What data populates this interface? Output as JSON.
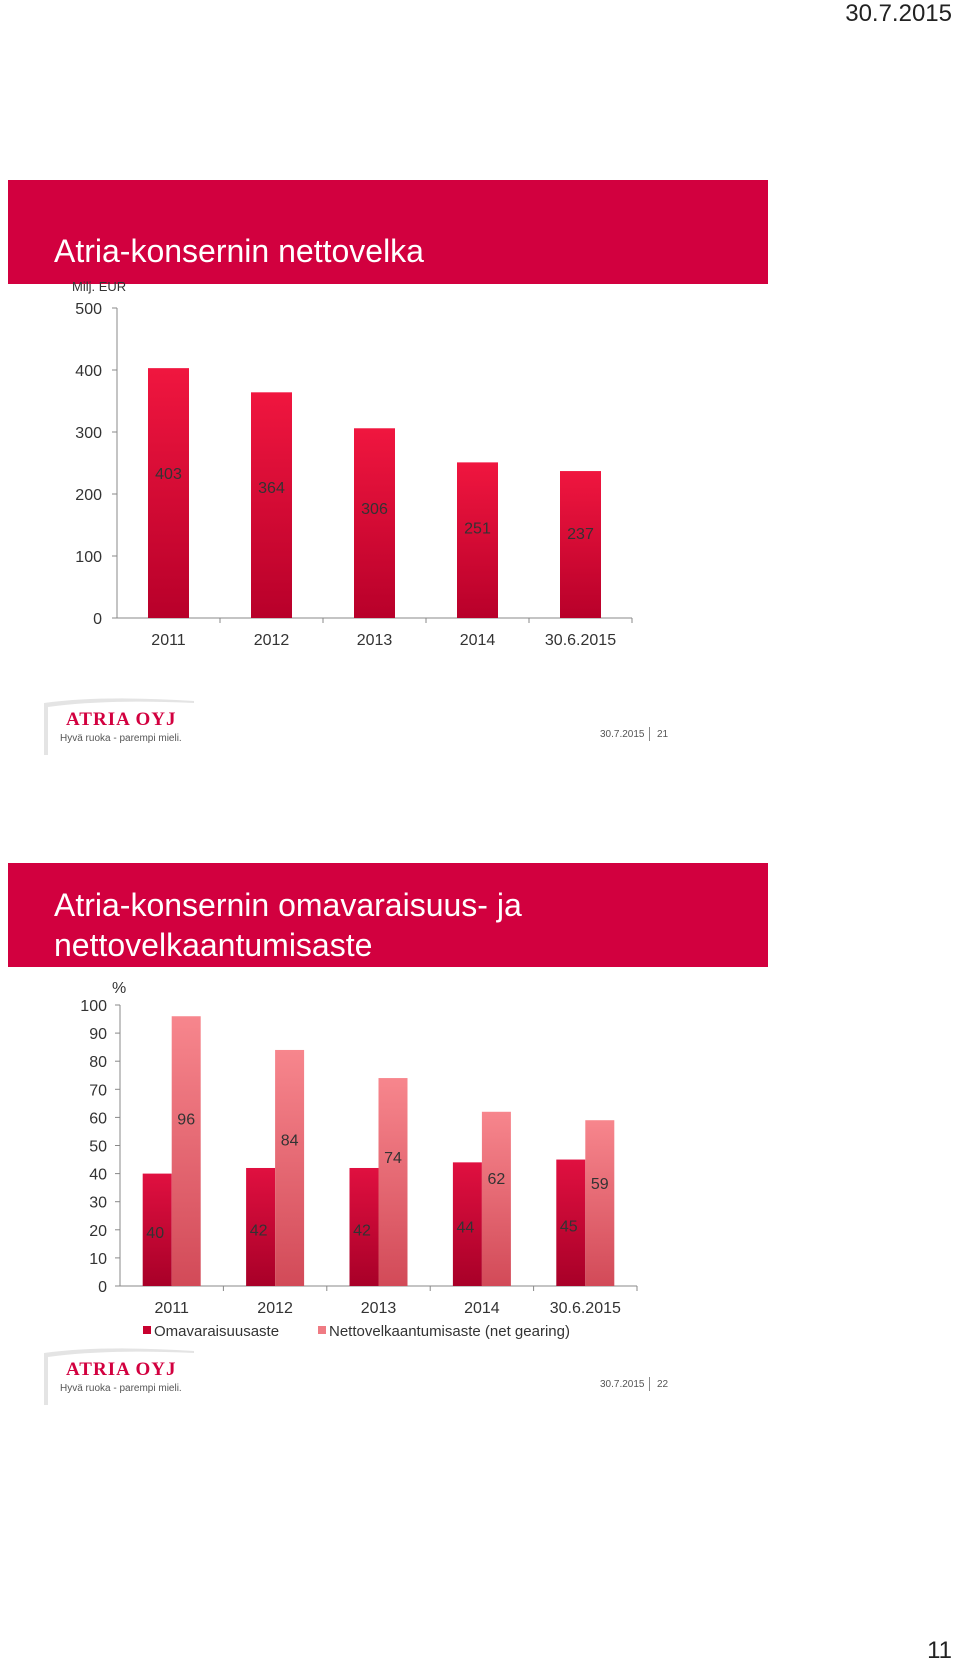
{
  "page": {
    "date": "30.7.2015",
    "number": "11"
  },
  "slides": [
    {
      "title": "Atria-konsernin nettovelka",
      "unit": "Milj. EUR",
      "footer_date": "30.7.2015",
      "slide_number": "21",
      "logo_name": "ATRIA OYJ",
      "logo_slogan": "Hyvä ruoka - parempi mieli."
    },
    {
      "title": "Atria-konsernin omavaraisuus- ja nettovelkaantumisaste",
      "unit": "%",
      "footer_date": "30.7.2015",
      "slide_number": "22",
      "logo_name": "ATRIA OYJ",
      "logo_slogan": "Hyvä ruoka - parempi mieli."
    }
  ],
  "chart_data": [
    {
      "type": "bar",
      "title": "Atria-konsernin nettovelka",
      "ylabel": "Milj. EUR",
      "xlabel": "",
      "categories": [
        "2011",
        "2012",
        "2013",
        "2014",
        "30.6.2015"
      ],
      "values": [
        403,
        364,
        306,
        251,
        237
      ],
      "value_labels": [
        "403",
        "364",
        "306",
        "251",
        "237"
      ],
      "ylim": [
        0,
        500
      ],
      "yticks": [
        "0",
        "100",
        "200",
        "300",
        "400",
        "500"
      ],
      "color": "#e3103f",
      "grid": false
    },
    {
      "type": "bar",
      "title": "Atria-konsernin omavaraisuus- ja nettovelkaantumisaste",
      "ylabel": "%",
      "xlabel": "",
      "categories": [
        "2011",
        "2012",
        "2013",
        "2014",
        "30.6.2015"
      ],
      "series": [
        {
          "name": "Omavaraisuusaste",
          "values": [
            40,
            42,
            42,
            44,
            45
          ],
          "value_labels": [
            "40",
            "42",
            "42",
            "44",
            "45"
          ],
          "color": "#d8103a"
        },
        {
          "name": "Nettovelkaantumisaste (net gearing)",
          "values": [
            96,
            84,
            74,
            62,
            59
          ],
          "value_labels": [
            "96",
            "84",
            "74",
            "62",
            "59"
          ],
          "color": "#ef7b83"
        }
      ],
      "ylim": [
        0,
        100
      ],
      "yticks": [
        "0",
        "10",
        "20",
        "30",
        "40",
        "50",
        "60",
        "70",
        "80",
        "90",
        "100"
      ],
      "legend": "bottom",
      "grid": false
    }
  ]
}
